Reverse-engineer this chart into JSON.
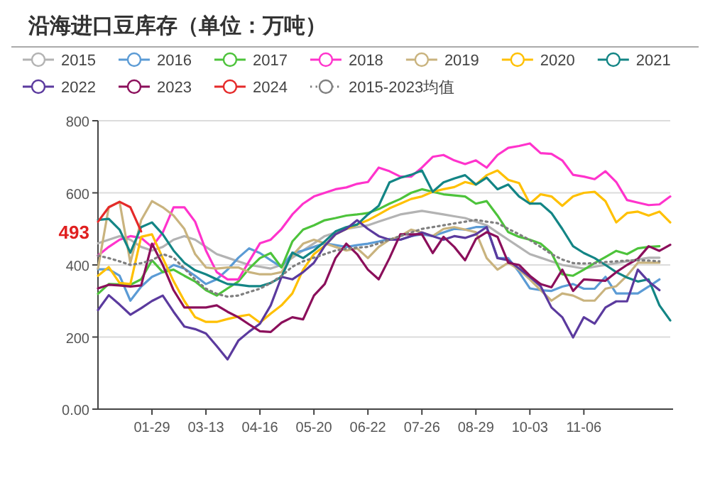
{
  "chart_data": {
    "type": "line",
    "title": "沿海进口豆库存（单位：万吨）",
    "categories": [
      null,
      null,
      null,
      null,
      null,
      "01-29",
      null,
      null,
      null,
      null,
      "03-13",
      null,
      null,
      null,
      null,
      "04-16",
      null,
      null,
      null,
      null,
      "05-20",
      null,
      null,
      null,
      null,
      "06-22",
      null,
      null,
      null,
      null,
      "07-26",
      null,
      null,
      null,
      null,
      "08-29",
      null,
      null,
      null,
      null,
      "10-03",
      null,
      null,
      null,
      null,
      "11-06",
      null,
      null,
      null,
      null,
      null,
      null,
      null,
      null
    ],
    "ylim": [
      0,
      800
    ],
    "yticks": [
      {
        "value": 0,
        "label": "0.00"
      },
      200,
      400,
      600,
      800
    ],
    "grid": "y",
    "legend": "top",
    "annotations": [
      {
        "text": "493",
        "y": 493
      }
    ],
    "series": [
      {
        "name": "2015",
        "color": "#b3b3b3",
        "values": [
          460,
          470,
          480,
          470,
          450,
          440,
          450,
          470,
          480,
          470,
          450,
          430,
          420,
          410,
          400,
          395,
          390,
          400,
          420,
          440,
          460,
          480,
          490,
          500,
          505,
          510,
          520,
          530,
          540,
          545,
          550,
          545,
          540,
          535,
          530,
          520,
          510,
          490,
          470,
          450,
          430,
          420,
          410,
          400,
          395,
          390,
          395,
          400,
          405,
          410,
          415,
          420,
          420,
          null
        ]
      },
      {
        "name": "2016",
        "color": "#5b9bd5",
        "values": [
          388,
          388,
          370,
          301,
          340,
          367,
          380,
          400,
          390,
          370,
          347,
          360,
          387,
          420,
          446,
          433,
          413,
          394,
          433,
          440,
          450,
          460,
          455,
          450,
          455,
          459,
          465,
          472,
          470,
          480,
          485,
          480,
          490,
          500,
          498,
          505,
          505,
          419,
          419,
          380,
          335,
          330,
          328,
          340,
          347,
          334,
          334,
          367,
          321,
          321,
          321,
          340,
          360,
          null
        ]
      },
      {
        "name": "2017",
        "color": "#4dc33b",
        "values": [
          320,
          347,
          346,
          345,
          360,
          413,
          380,
          387,
          370,
          354,
          330,
          315,
          335,
          354,
          390,
          419,
          433,
          393,
          465,
          498,
          510,
          524,
          530,
          537,
          540,
          544,
          555,
          570,
          583,
          600,
          610,
          603,
          596,
          593,
          590,
          570,
          577,
          537,
          491,
          478,
          470,
          459,
          433,
          374,
          370,
          387,
          405,
          422,
          439,
          430,
          446,
          450,
          452,
          null
        ]
      },
      {
        "name": "2018",
        "color": "#ff33cc",
        "values": [
          426,
          450,
          470,
          480,
          475,
          450,
          490,
          560,
          560,
          520,
          440,
          380,
          360,
          360,
          410,
          460,
          470,
          500,
          540,
          570,
          590,
          600,
          610,
          615,
          625,
          630,
          670,
          660,
          645,
          645,
          670,
          700,
          705,
          690,
          680,
          690,
          670,
          705,
          725,
          730,
          737,
          710,
          708,
          690,
          650,
          645,
          638,
          660,
          630,
          580,
          573,
          566,
          568,
          590
        ]
      },
      {
        "name": "2019",
        "color": "#c9b37e",
        "values": [
          390,
          560,
          575,
          406,
          524,
          577,
          560,
          537,
          500,
          430,
          393,
          390,
          393,
          393,
          380,
          374,
          374,
          380,
          426,
          459,
          470,
          460,
          450,
          440,
          446,
          419,
          450,
          470,
          480,
          498,
          490,
          480,
          500,
          505,
          498,
          491,
          419,
          387,
          406,
          387,
          360,
          330,
          301,
          321,
          315,
          301,
          301,
          334,
          341,
          370,
          406,
          406,
          406,
          null
        ]
      },
      {
        "name": "2020",
        "color": "#ffc000",
        "values": [
          370,
          394,
          350,
          347,
          478,
          485,
          419,
          355,
          300,
          255,
          242,
          242,
          250,
          257,
          262,
          240,
          265,
          288,
          321,
          387,
          430,
          453,
          485,
          500,
          512,
          524,
          540,
          557,
          570,
          583,
          590,
          603,
          610,
          616,
          630,
          623,
          649,
          662,
          636,
          627,
          570,
          596,
          590,
          564,
          590,
          600,
          603,
          577,
          518,
          544,
          548,
          537,
          548,
          518
        ]
      },
      {
        "name": "2021",
        "color": "#138585",
        "values": [
          525,
          528,
          498,
          434,
          505,
          518,
          485,
          440,
          406,
          385,
          374,
          360,
          347,
          345,
          341,
          341,
          350,
          367,
          434,
          419,
          440,
          465,
          493,
          505,
          512,
          540,
          564,
          629,
          642,
          650,
          662,
          603,
          629,
          640,
          649,
          623,
          642,
          610,
          623,
          590,
          570,
          570,
          544,
          500,
          452,
          433,
          419,
          400,
          380,
          365,
          354,
          360,
          288,
          246
        ]
      },
      {
        "name": "2022",
        "color": "#5b3a9e",
        "values": [
          275,
          316,
          290,
          262,
          280,
          300,
          315,
          270,
          229,
          222,
          210,
          175,
          138,
          190,
          215,
          237,
          288,
          367,
          360,
          380,
          406,
          453,
          485,
          500,
          524,
          500,
          480,
          470,
          470,
          480,
          490,
          480,
          470,
          480,
          475,
          485,
          505,
          419,
          413,
          390,
          367,
          341,
          282,
          255,
          199,
          255,
          237,
          282,
          299,
          299,
          387,
          354,
          330,
          null
        ]
      },
      {
        "name": "2023",
        "color": "#8b0f5b",
        "values": [
          335,
          345,
          343,
          340,
          343,
          459,
          400,
          330,
          282,
          282,
          282,
          288,
          270,
          255,
          235,
          216,
          214,
          240,
          255,
          249,
          315,
          347,
          419,
          459,
          430,
          387,
          360,
          419,
          485,
          485,
          485,
          433,
          478,
          450,
          413,
          472,
          491,
          478,
          406,
          400,
          370,
          347,
          338,
          387,
          328,
          360,
          358,
          356,
          380,
          400,
          417,
          452,
          439,
          456
        ]
      },
      {
        "name": "2024",
        "color": "#e52a2a",
        "values": [
          520,
          560,
          575,
          560,
          493,
          null,
          null,
          null,
          null,
          null,
          null,
          null,
          null,
          null,
          null,
          null,
          null,
          null,
          null,
          null,
          null,
          null,
          null,
          null,
          null,
          null,
          null,
          null,
          null,
          null,
          null,
          null,
          null,
          null,
          null,
          null,
          null,
          null,
          null,
          null,
          null,
          null,
          null,
          null,
          null,
          null,
          null,
          null,
          null,
          null,
          null,
          null,
          null,
          null
        ]
      },
      {
        "name": "2015-2023均值",
        "color": "#7f7f7f",
        "line_style": "dotted",
        "values": [
          426,
          419,
          410,
          400,
          405,
          413,
          430,
          420,
          390,
          360,
          334,
          320,
          312,
          315,
          325,
          334,
          350,
          370,
          395,
          410,
          420,
          430,
          440,
          445,
          448,
          450,
          460,
          470,
          480,
          490,
          500,
          505,
          510,
          515,
          520,
          525,
          520,
          516,
          500,
          485,
          469,
          450,
          430,
          415,
          405,
          404,
          405,
          408,
          410,
          412,
          413,
          412,
          410,
          null
        ]
      }
    ]
  }
}
